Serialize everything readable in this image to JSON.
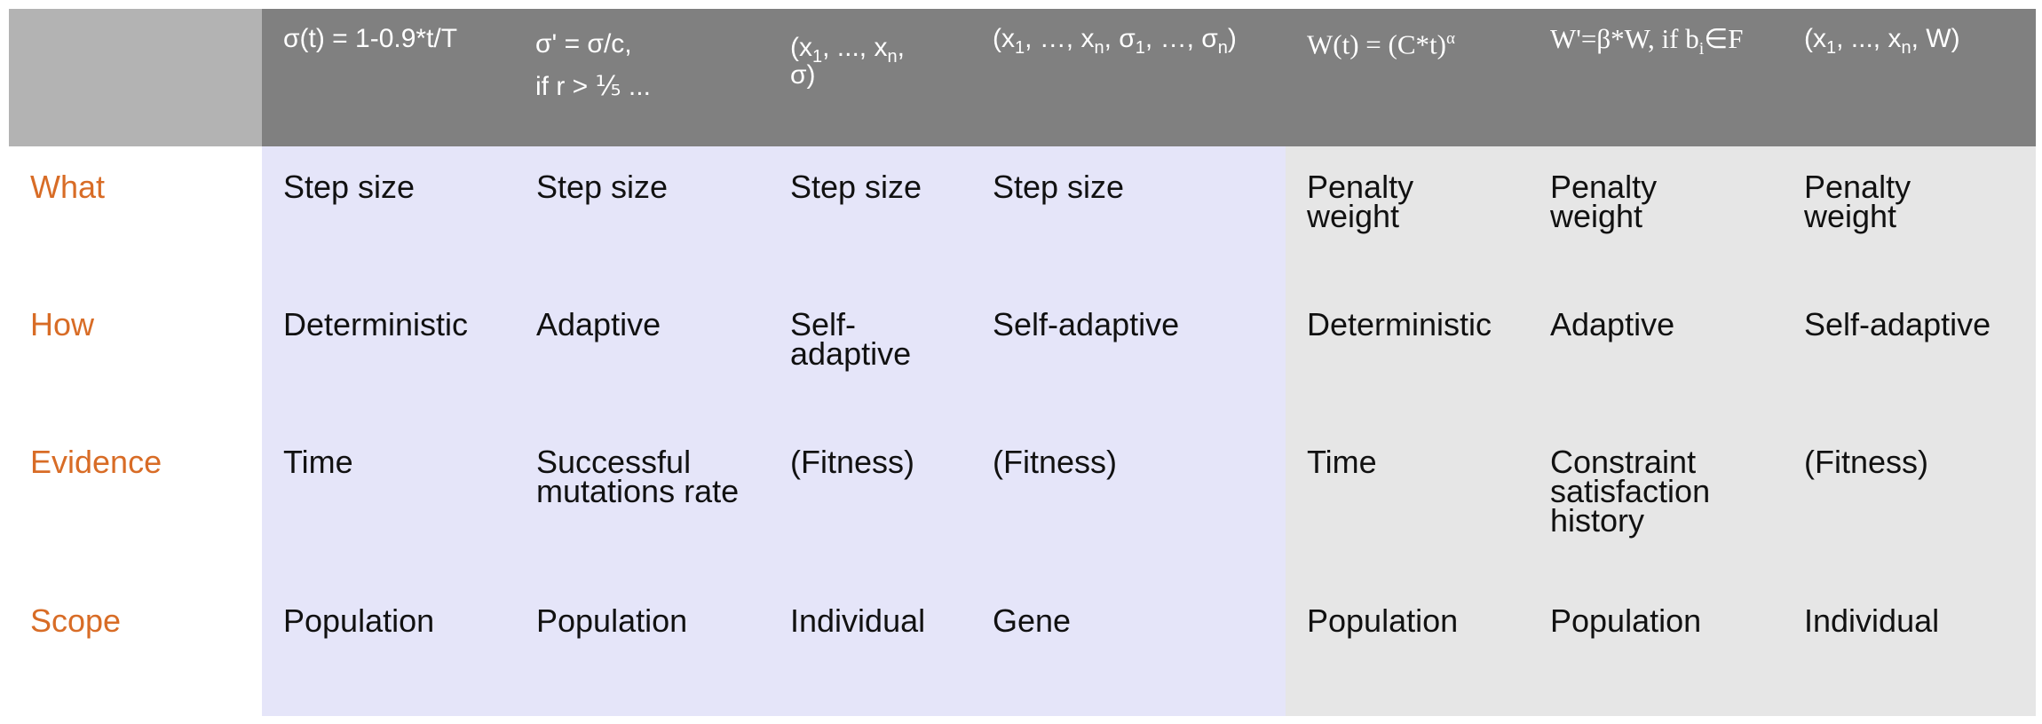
{
  "headers": [
    {
      "line1": "σ(t) = 1-0.9*t/T",
      "line2": ""
    },
    {
      "line1": "σ' = σ/c,",
      "line2": "if r > ⅕ ..."
    },
    {
      "col3_a": "(x",
      "col3_b": ", ..., x",
      "col3_c": ",",
      "col3_d": "σ)"
    },
    {
      "p1": "(x",
      "p2": ", …, x",
      "p3": ", σ",
      "p4": ", …, σ",
      "p5": ")"
    },
    {
      "text": "W(t) = (C*t)",
      "sup": "α"
    },
    {
      "p1": "W'=β*W, if b",
      "p2": "∈F"
    },
    {
      "p1": "(x",
      "p2": ", ..., x",
      "p3": ", W)"
    }
  ],
  "subs": {
    "one": "1",
    "n": "n",
    "i": "i"
  },
  "row_labels": [
    "What",
    "How",
    "Evidence",
    "Scope"
  ],
  "rows": {
    "what": [
      "Step size",
      "Step size",
      "Step size",
      "Step size",
      "Penalty weight",
      "Penalty weight",
      "Penalty weight"
    ],
    "how": [
      "Deterministic",
      "Adaptive",
      "Self-adaptive",
      "Self-adaptive",
      "Deterministic",
      "Adaptive",
      "Self-adaptive"
    ],
    "evidence": [
      "Time",
      "Successful mutations rate",
      "(Fitness)",
      "(Fitness)",
      "Time",
      "Constraint satisfaction history",
      "(Fitness)"
    ],
    "scope": [
      "Population",
      "Population",
      "Individual",
      "Gene",
      "Population",
      "Population",
      "Individual"
    ]
  },
  "colors": {
    "header_bg": "#808080",
    "corner_bg": "#b3b3b3",
    "blue_band": "#e5e5f9",
    "grey_band": "#e6e6e6",
    "label_orange": "#d86c26"
  }
}
